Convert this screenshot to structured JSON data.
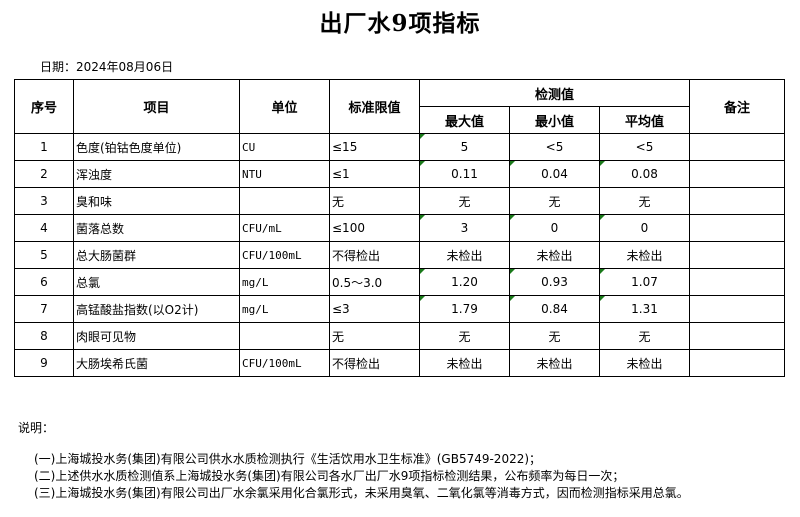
{
  "title": "出厂水9项指标",
  "date": "日期：2024年08月06日",
  "headers": {
    "no": "序号",
    "item": "项目",
    "unit": "单位",
    "limit": "标准限值",
    "detect": "检测值",
    "max": "最大值",
    "min": "最小值",
    "avg": "平均值",
    "note": "备注"
  },
  "rows": [
    {
      "no": "1",
      "item": "色度(铂钴色度单位)",
      "unit": "CU",
      "limit": "≤15",
      "max": "5",
      "min": "<5",
      "avg": "<5",
      "flags": [
        true,
        false,
        false
      ]
    },
    {
      "no": "2",
      "item": "浑浊度",
      "unit": "NTU",
      "limit": "≤1",
      "max": "0.11",
      "min": "0.04",
      "avg": "0.08",
      "flags": [
        true,
        true,
        true
      ]
    },
    {
      "no": "3",
      "item": "臭和味",
      "unit": "",
      "limit": "无",
      "max": "无",
      "min": "无",
      "avg": "无",
      "flags": [
        false,
        false,
        false
      ]
    },
    {
      "no": "4",
      "item": "菌落总数",
      "unit": "CFU/mL",
      "limit": "≤100",
      "max": "3",
      "min": "0",
      "avg": "0",
      "flags": [
        true,
        true,
        true
      ]
    },
    {
      "no": "5",
      "item": "总大肠菌群",
      "unit": "CFU/100mL",
      "limit": "不得检出",
      "max": "未检出",
      "min": "未检出",
      "avg": "未检出",
      "flags": [
        false,
        false,
        false
      ]
    },
    {
      "no": "6",
      "item": "总氯",
      "unit": "mg/L",
      "limit": "0.5～3.0",
      "max": "1.20",
      "min": "0.93",
      "avg": "1.07",
      "flags": [
        true,
        true,
        true
      ]
    },
    {
      "no": "7",
      "item": "高锰酸盐指数(以O2计)",
      "unit": "mg/L",
      "limit": "≤3",
      "max": "1.79",
      "min": "0.84",
      "avg": "1.31",
      "flags": [
        true,
        true,
        true
      ]
    },
    {
      "no": "8",
      "item": "肉眼可见物",
      "unit": "",
      "limit": "无",
      "max": "无",
      "min": "无",
      "avg": "无",
      "flags": [
        false,
        false,
        false
      ]
    },
    {
      "no": "9",
      "item": "大肠埃希氏菌",
      "unit": "CFU/100mL",
      "limit": "不得检出",
      "max": "未检出",
      "min": "未检出",
      "avg": "未检出",
      "flags": [
        false,
        false,
        false
      ]
    }
  ],
  "notes": {
    "heading": "说明：",
    "items": [
      "(一)上海城投水务(集团)有限公司供水水质检测执行《生活饮用水卫生标准》(GB5749-2022)；",
      "(二)上述供水水质检测值系上海城投水务(集团)有限公司各水厂出厂水9项指标检测结果，公布频率为每日一次；",
      "(三)上海城投水务(集团)有限公司出厂水余氯采用化合氯形式，未采用臭氧、二氧化氯等消毒方式，因而检测指标采用总氯。"
    ]
  },
  "colors": {
    "error_indicator": "#1a7a1a"
  }
}
